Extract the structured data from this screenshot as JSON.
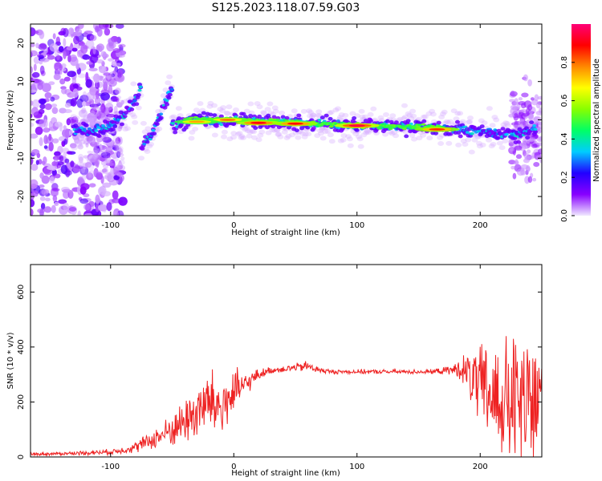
{
  "title": "S125.2023.118.07.59.G03",
  "chart_data": [
    {
      "type": "heatmap",
      "xlabel": "Height of straight line (km)",
      "ylabel": "Frequency (Hz)",
      "xlim": [
        -165,
        250
      ],
      "ylim": [
        -25,
        25
      ],
      "xticks": [
        -100,
        0,
        100,
        200
      ],
      "yticks": [
        -20,
        -10,
        0,
        10,
        20
      ],
      "colorbar": {
        "label": "Normalized spectral amplitude",
        "range": [
          0,
          1
        ],
        "ticks": [
          "0.0",
          "0.2",
          "0.4",
          "0.6",
          "0.8"
        ],
        "colors": [
          "#f0e8ff",
          "#8800ff",
          "#2200ff",
          "#00ccff",
          "#00ff66",
          "#88ff00",
          "#ffff00",
          "#ff8800",
          "#ff0000",
          "#ff0077"
        ]
      },
      "ridges": [
        {
          "x": [
            -130,
            -120,
            -110,
            -100,
            -90,
            -80,
            -75
          ],
          "y": [
            -2.5,
            -3,
            -2.5,
            -1.5,
            1,
            5,
            9
          ]
        },
        {
          "x": [
            -75,
            -70,
            -65,
            -60,
            -55,
            -50
          ],
          "y": [
            -7,
            -5,
            -3,
            1,
            5,
            8
          ]
        },
        {
          "x": [
            -50,
            -40,
            -30,
            -20,
            -10,
            0
          ],
          "y": [
            -1,
            -0.5,
            0.5,
            0,
            -0.5,
            0
          ]
        },
        {
          "x": [
            0,
            50,
            100,
            150,
            200,
            230,
            245
          ],
          "y": [
            0,
            -0.8,
            -1.5,
            -1.8,
            -3,
            -4,
            -2
          ]
        }
      ],
      "hotspots": [
        {
          "x": 100,
          "y": -1.5,
          "amplitude": 0.95
        },
        {
          "x": 20,
          "y": -0.8,
          "amplitude": 0.9
        },
        {
          "x": 50,
          "y": -1,
          "amplitude": 0.88
        },
        {
          "x": 165,
          "y": -2.5,
          "amplitude": 0.85
        },
        {
          "x": -5,
          "y": 0,
          "amplitude": 0.8
        },
        {
          "x": -30,
          "y": -0.5,
          "amplitude": 0.75
        }
      ]
    },
    {
      "type": "line",
      "xlabel": "Height of straight line (km)",
      "ylabel": "SNR (10 * v/v)",
      "xlim": [
        -165,
        250
      ],
      "ylim": [
        0,
        700
      ],
      "xticks": [
        -100,
        0,
        100,
        200
      ],
      "yticks": [
        0,
        200,
        400,
        600
      ],
      "color": "#ee2222",
      "series": [
        {
          "x": [
            -165,
            -140,
            -120,
            -100,
            -90,
            -80,
            -70,
            -60,
            -50,
            -40,
            -30,
            -20,
            -10,
            0,
            10,
            20,
            30,
            40,
            50,
            60,
            70,
            80,
            100,
            120,
            140,
            160,
            175,
            185,
            190,
            200,
            210,
            220,
            230,
            240,
            245,
            250
          ],
          "y": [
            10,
            12,
            15,
            18,
            25,
            35,
            55,
            75,
            100,
            130,
            165,
            200,
            180,
            230,
            265,
            300,
            315,
            320,
            325,
            330,
            315,
            310,
            310,
            310,
            310,
            310,
            315,
            320,
            300,
            250,
            220,
            200,
            190,
            180,
            200,
            220
          ],
          "spread": [
            5,
            6,
            8,
            10,
            12,
            20,
            30,
            40,
            60,
            80,
            110,
            120,
            120,
            90,
            40,
            20,
            12,
            12,
            15,
            20,
            10,
            8,
            8,
            8,
            8,
            8,
            15,
            40,
            90,
            150,
            200,
            230,
            260,
            280,
            280,
            260
          ]
        }
      ]
    }
  ]
}
